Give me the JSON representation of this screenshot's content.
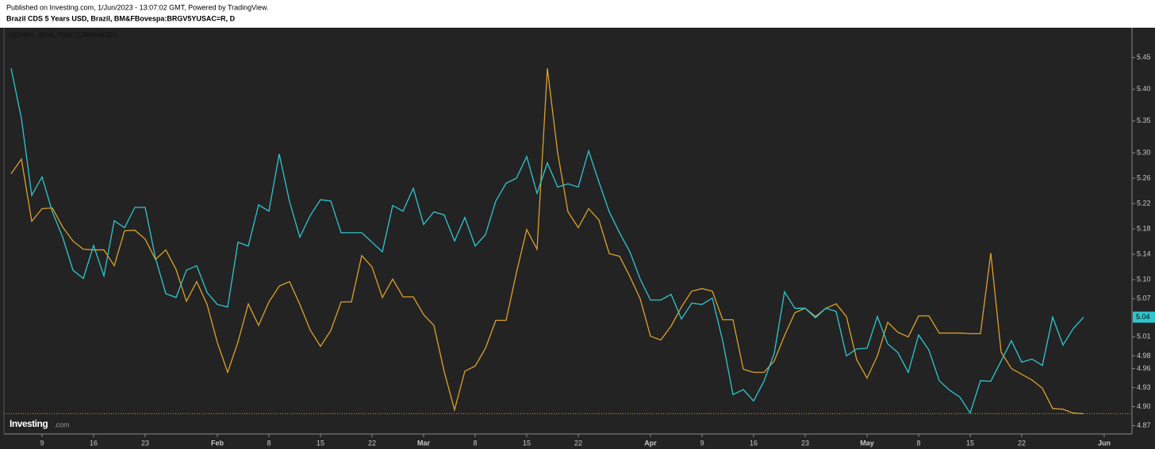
{
  "header": {
    "published": "Published on Investing.com, 1/Jun/2023 - 13:07:02 GMT, Powered by TradingView.",
    "symbol": "Brazil CDS 5 Years USD, Brazil, BM&FBovespa:BRGV5YUSAC=R, D"
  },
  "logo": {
    "name": "Investing",
    "suffix": ".com"
  },
  "chart_data": {
    "type": "line",
    "title": "USD/BRL, REAL-TIME CURRENCIES",
    "categories": [
      null,
      null,
      null,
      "9",
      null,
      null,
      null,
      null,
      "16",
      null,
      null,
      null,
      null,
      "23",
      null,
      null,
      null,
      null,
      null,
      null,
      "Feb",
      null,
      null,
      null,
      null,
      "8",
      null,
      null,
      null,
      null,
      "15",
      null,
      null,
      null,
      null,
      "22",
      null,
      null,
      null,
      null,
      "Mar",
      null,
      null,
      null,
      null,
      "8",
      null,
      null,
      null,
      null,
      "15",
      null,
      null,
      null,
      null,
      "22",
      null,
      null,
      null,
      null,
      null,
      null,
      "Apr",
      null,
      null,
      null,
      null,
      "9",
      null,
      null,
      null,
      null,
      "16",
      null,
      null,
      null,
      null,
      "23",
      null,
      null,
      null,
      null,
      null,
      "May",
      null,
      null,
      null,
      null,
      "8",
      null,
      null,
      null,
      null,
      "15",
      null,
      null,
      null,
      null,
      "22",
      null,
      null,
      null,
      null,
      null,
      null,
      null,
      "Jun"
    ],
    "series": [
      {
        "color": "#2fc6cf",
        "last_label": "5.04",
        "values": [
          5.433,
          5.354,
          5.233,
          5.262,
          5.207,
          5.167,
          5.115,
          5.102,
          5.154,
          5.106,
          5.193,
          5.182,
          5.214,
          5.214,
          5.134,
          5.078,
          5.072,
          5.115,
          5.122,
          5.08,
          5.061,
          5.057,
          5.159,
          5.153,
          5.218,
          5.208,
          5.298,
          5.223,
          5.167,
          5.201,
          5.226,
          5.224,
          5.174,
          5.174,
          5.174,
          5.159,
          5.144,
          5.217,
          5.208,
          5.244,
          5.187,
          5.207,
          5.202,
          5.161,
          5.198,
          5.153,
          5.171,
          5.224,
          5.252,
          5.26,
          5.294,
          5.236,
          5.284,
          5.246,
          5.251,
          5.246,
          5.303,
          5.254,
          5.207,
          5.174,
          5.144,
          5.101,
          5.068,
          5.068,
          5.077,
          5.038,
          5.063,
          5.061,
          5.071,
          5.004,
          4.919,
          4.927,
          4.909,
          4.94,
          4.984,
          5.081,
          5.055,
          5.055,
          5.04,
          5.055,
          5.05,
          4.98,
          4.991,
          4.992,
          5.042,
          4.999,
          4.985,
          4.954,
          5.013,
          4.989,
          4.941,
          4.926,
          4.915,
          4.89,
          4.941,
          4.94,
          4.972,
          5.004,
          4.97,
          4.975,
          4.965,
          5.041,
          4.997,
          5.023,
          5.041,
          null,
          null
        ]
      },
      {
        "color": "#dba12a",
        "values": [
          5.267,
          5.29,
          5.192,
          5.212,
          5.213,
          5.183,
          5.161,
          5.148,
          5.147,
          5.147,
          5.122,
          5.177,
          5.178,
          5.164,
          5.132,
          5.147,
          5.116,
          5.066,
          5.097,
          5.061,
          5.001,
          4.954,
          5.002,
          5.062,
          5.028,
          5.065,
          5.09,
          5.097,
          5.061,
          5.021,
          4.995,
          5.02,
          5.065,
          5.065,
          5.138,
          5.12,
          5.072,
          5.101,
          5.073,
          5.073,
          5.045,
          5.028,
          4.955,
          4.895,
          4.956,
          4.964,
          4.992,
          5.036,
          5.036,
          5.111,
          5.179,
          5.148,
          5.433,
          5.3,
          5.207,
          5.182,
          5.212,
          5.194,
          5.141,
          5.137,
          5.105,
          5.07,
          5.011,
          5.005,
          5.027,
          5.057,
          5.082,
          5.086,
          5.082,
          5.037,
          5.037,
          4.959,
          4.954,
          4.954,
          4.972,
          5.012,
          5.048,
          5.055,
          5.042,
          5.055,
          5.062,
          5.042,
          4.974,
          4.945,
          4.98,
          5.033,
          5.017,
          5.01,
          5.043,
          5.043,
          5.016,
          5.016,
          5.016,
          5.015,
          5.015,
          5.142,
          4.986,
          4.96,
          4.951,
          4.942,
          4.929,
          4.897,
          4.896,
          4.89,
          4.889,
          null,
          null
        ]
      }
    ],
    "ylim": [
      4.857,
      5.497
    ],
    "yticks": [
      5.45,
      {
        "value": 5.4,
        "label": "5.40"
      },
      5.35,
      {
        "value": 5.3,
        "label": "5.30"
      },
      5.26,
      5.22,
      5.18,
      5.14,
      {
        "value": 5.1,
        "label": "5.10"
      },
      5.07,
      5.01,
      4.98,
      4.96,
      4.93,
      {
        "value": 4.9,
        "label": "4.90"
      },
      4.87
    ],
    "grid": false
  }
}
